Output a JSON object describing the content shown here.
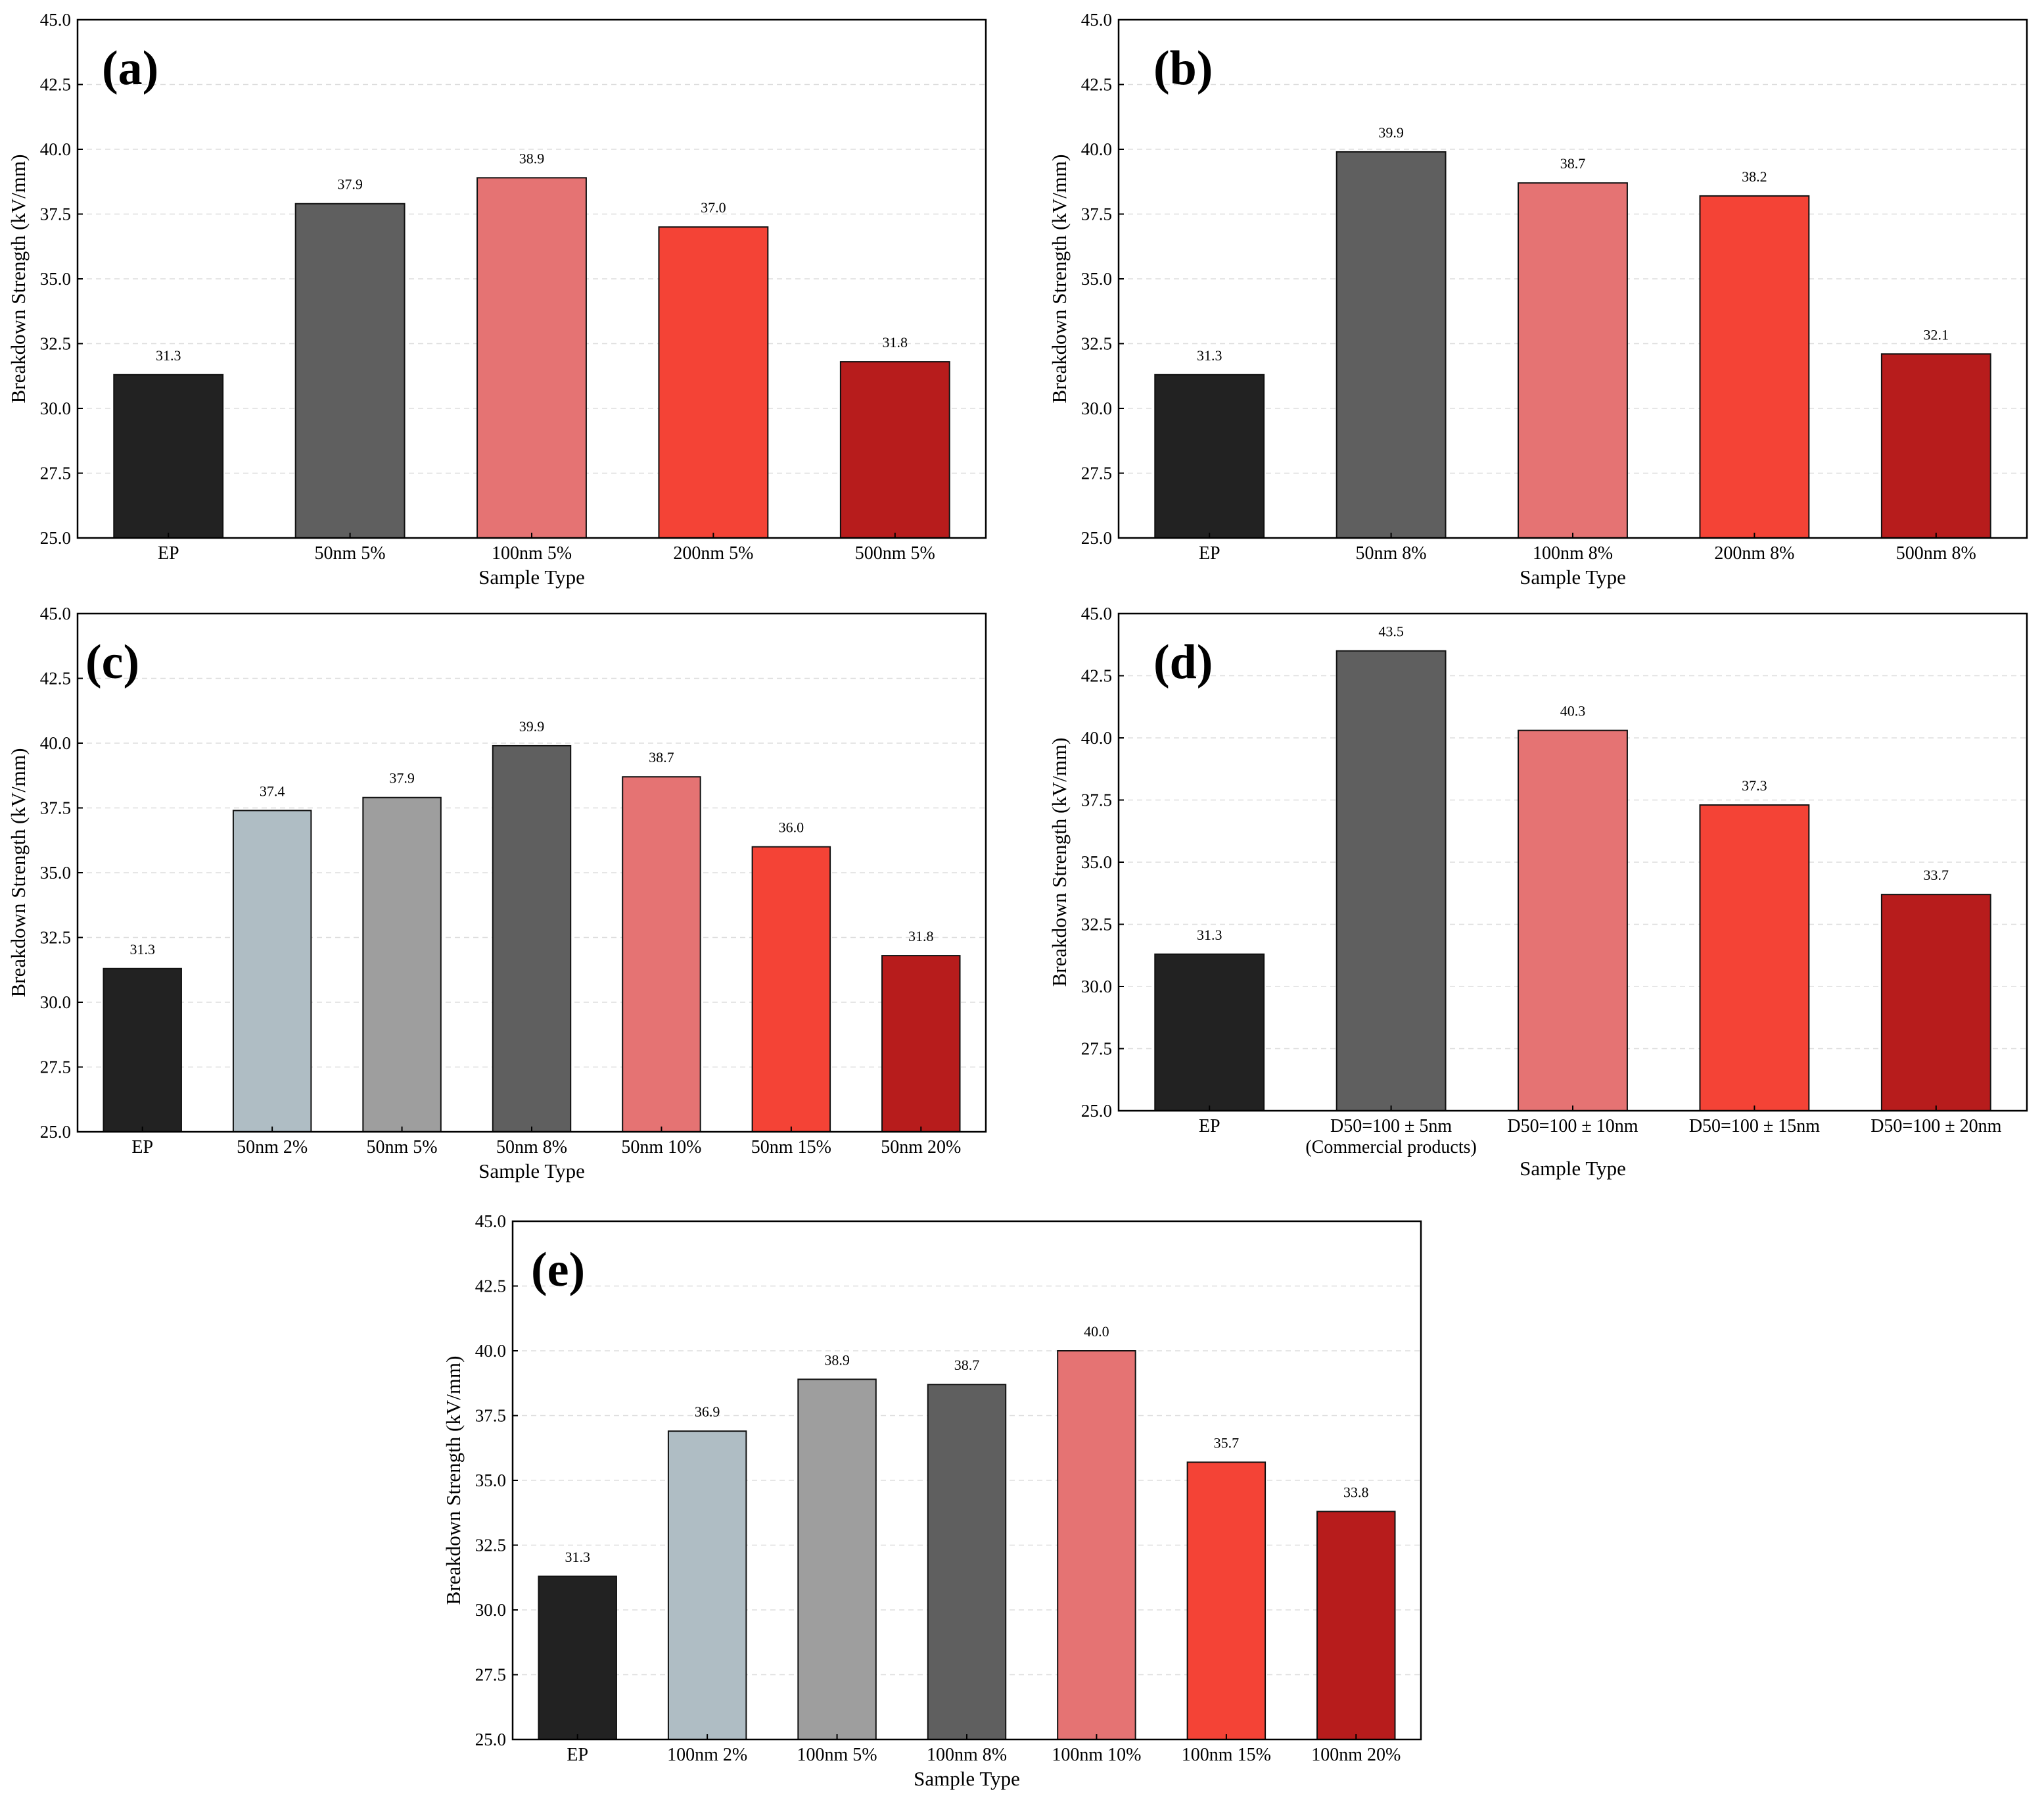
{
  "colors": {
    "black": "#222222",
    "light_gray": "#afbdc4",
    "gray": "#9e9e9e",
    "dark_gray": "#5f5f5f",
    "salmon": "#e57373",
    "red": "#f44336",
    "dark_red": "#b71c1c",
    "grid": "#dddddd"
  },
  "chart_data": [
    {
      "type": "bar",
      "panel": "(a)",
      "xlabel": "Sample Type",
      "ylabel": "Breakdown Strength (kV/mm)",
      "ylim": [
        25.0,
        45.0
      ],
      "yticks": [
        "25.0",
        "27.5",
        "30.0",
        "32.5",
        "35.0",
        "37.5",
        "40.0",
        "42.5",
        "45.0"
      ],
      "grid": true,
      "categories": [
        "EP",
        "50nm 5%",
        "100nm 5%",
        "200nm 5%",
        "500nm 5%"
      ],
      "values": [
        31.3,
        37.9,
        38.9,
        37.0,
        31.8
      ],
      "value_labels": [
        "31.3",
        "37.9",
        "38.9",
        "37.0",
        "31.8"
      ],
      "bar_colors": [
        "#222222",
        "#5f5f5f",
        "#e57373",
        "#f44336",
        "#b71c1c"
      ]
    },
    {
      "type": "bar",
      "panel": "(b)",
      "xlabel": "Sample Type",
      "ylabel": "Breakdown Strength (kV/mm)",
      "ylim": [
        25.0,
        45.0
      ],
      "yticks": [
        "25.0",
        "27.5",
        "30.0",
        "32.5",
        "35.0",
        "37.5",
        "40.0",
        "42.5",
        "45.0"
      ],
      "grid": true,
      "categories": [
        "EP",
        "50nm 8%",
        "100nm 8%",
        "200nm 8%",
        "500nm 8%"
      ],
      "values": [
        31.3,
        39.9,
        38.7,
        38.2,
        32.1
      ],
      "value_labels": [
        "31.3",
        "39.9",
        "38.7",
        "38.2",
        "32.1"
      ],
      "bar_colors": [
        "#222222",
        "#5f5f5f",
        "#e57373",
        "#f44336",
        "#b71c1c"
      ]
    },
    {
      "type": "bar",
      "panel": "(c)",
      "xlabel": "Sample Type",
      "ylabel": "Breakdown Strength (kV/mm)",
      "ylim": [
        25.0,
        45.0
      ],
      "yticks": [
        "25.0",
        "27.5",
        "30.0",
        "32.5",
        "35.0",
        "37.5",
        "40.0",
        "42.5",
        "45.0"
      ],
      "grid": true,
      "categories": [
        "EP",
        "50nm 2%",
        "50nm 5%",
        "50nm 8%",
        "50nm 10%",
        "50nm 15%",
        "50nm 20%"
      ],
      "values": [
        31.3,
        37.4,
        37.9,
        39.9,
        38.7,
        36.0,
        31.8
      ],
      "value_labels": [
        "31.3",
        "37.4",
        "37.9",
        "39.9",
        "38.7",
        "36.0",
        "31.8"
      ],
      "bar_colors": [
        "#222222",
        "#afbdc4",
        "#9e9e9e",
        "#5f5f5f",
        "#e57373",
        "#f44336",
        "#b71c1c"
      ]
    },
    {
      "type": "bar",
      "panel": "(d)",
      "xlabel": "Sample Type",
      "ylabel": "Breakdown Strength (kV/mm)",
      "ylim": [
        25.0,
        45.0
      ],
      "yticks": [
        "25.0",
        "27.5",
        "30.0",
        "32.5",
        "35.0",
        "37.5",
        "40.0",
        "42.5",
        "45.0"
      ],
      "grid": true,
      "categories": [
        "EP",
        "D50=100 ± 5nm",
        "D50=100 ± 10nm",
        "D50=100 ± 15nm",
        "D50=100 ± 20nm"
      ],
      "category_sublabels": [
        "",
        "(Commercial products)",
        "",
        "",
        ""
      ],
      "values": [
        31.3,
        43.5,
        40.3,
        37.3,
        33.7
      ],
      "value_labels": [
        "31.3",
        "43.5",
        "40.3",
        "37.3",
        "33.7"
      ],
      "bar_colors": [
        "#222222",
        "#5f5f5f",
        "#e57373",
        "#f44336",
        "#b71c1c"
      ]
    },
    {
      "type": "bar",
      "panel": "(e)",
      "xlabel": "Sample Type",
      "ylabel": "Breakdown Strength (kV/mm)",
      "ylim": [
        25.0,
        45.0
      ],
      "yticks": [
        "25.0",
        "27.5",
        "30.0",
        "32.5",
        "35.0",
        "37.5",
        "40.0",
        "42.5",
        "45.0"
      ],
      "grid": true,
      "categories": [
        "EP",
        "100nm 2%",
        "100nm 5%",
        "100nm 8%",
        "100nm 10%",
        "100nm 15%",
        "100nm 20%"
      ],
      "values": [
        31.3,
        36.9,
        38.9,
        38.7,
        40.0,
        35.7,
        33.8
      ],
      "value_labels": [
        "31.3",
        "36.9",
        "38.9",
        "38.7",
        "40.0",
        "35.7",
        "33.8"
      ],
      "bar_colors": [
        "#222222",
        "#afbdc4",
        "#9e9e9e",
        "#5f5f5f",
        "#e57373",
        "#f44336",
        "#b71c1c"
      ]
    }
  ]
}
